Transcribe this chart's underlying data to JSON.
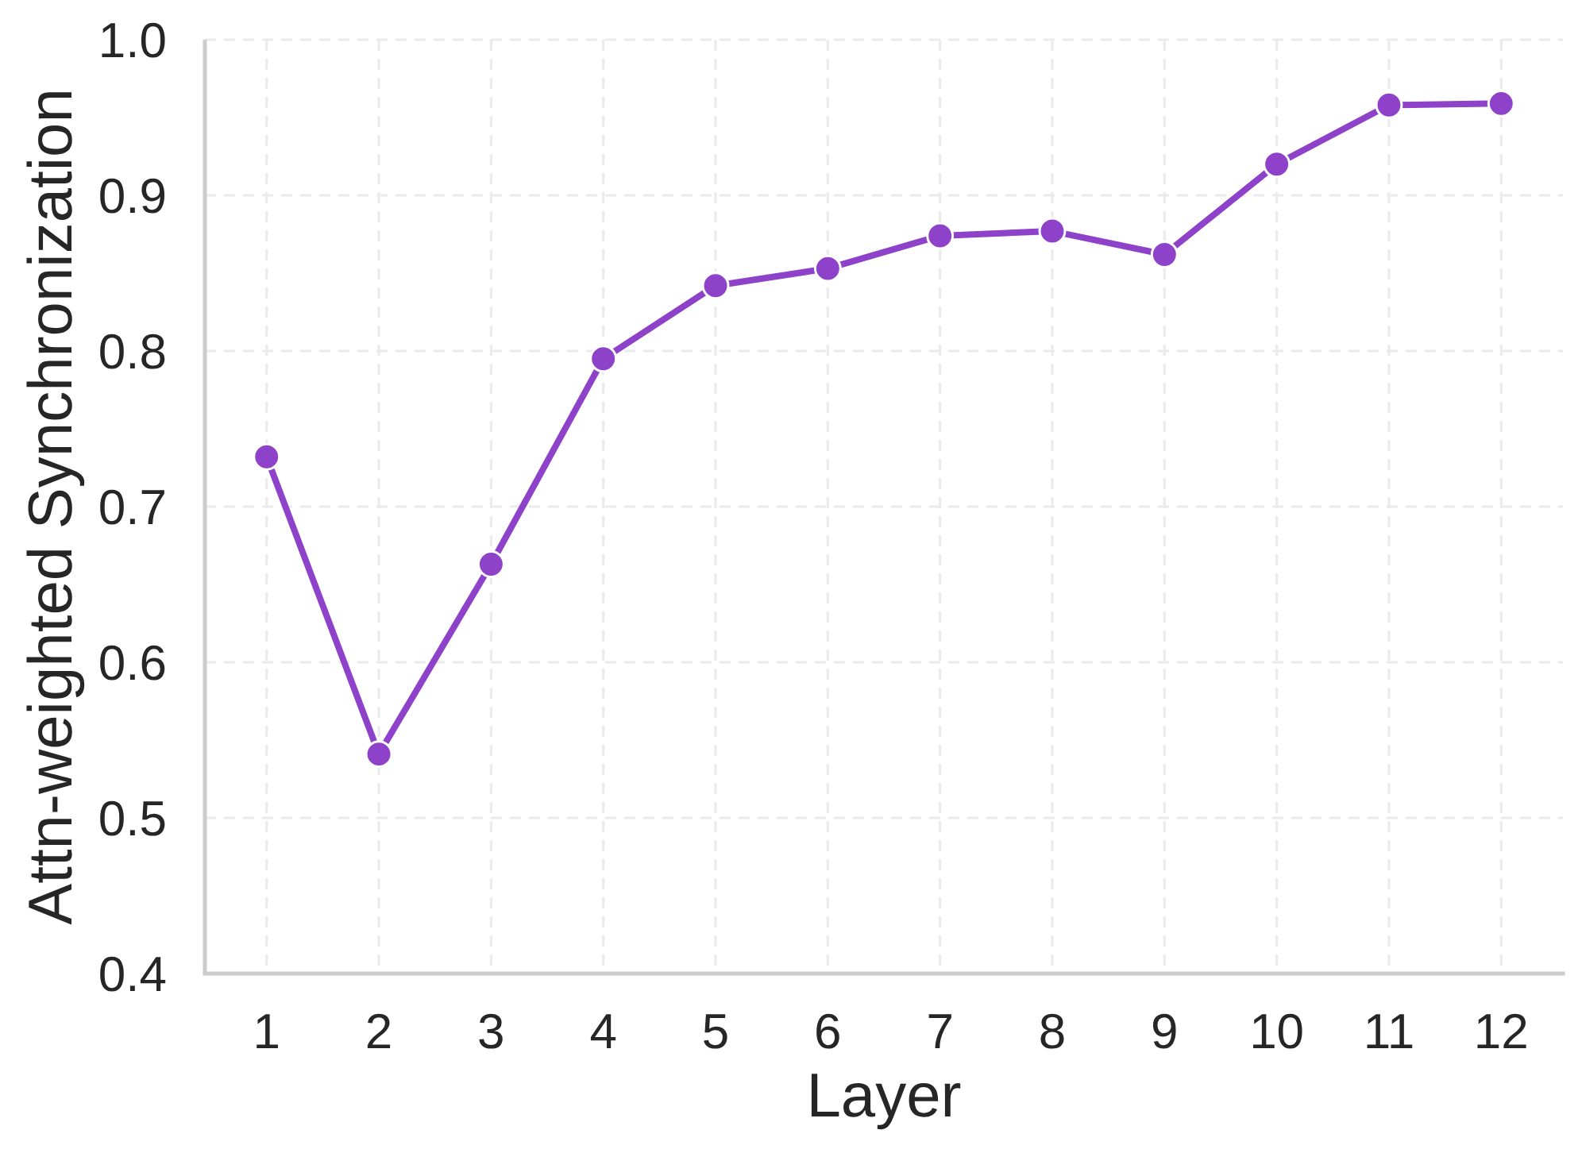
{
  "chart_data": {
    "type": "line",
    "xlabel": "Layer",
    "ylabel": "Attn-weighted Synchronization",
    "x": [
      1,
      2,
      3,
      4,
      5,
      6,
      7,
      8,
      9,
      10,
      11,
      12
    ],
    "series": [
      {
        "color": "#8e41c9",
        "values": [
          0.732,
          0.541,
          0.663,
          0.795,
          0.842,
          0.853,
          0.874,
          0.877,
          0.862,
          0.92,
          0.958,
          0.959
        ]
      }
    ],
    "xlim": [
      0.45,
      12.55
    ],
    "xticks": [
      1,
      2,
      3,
      4,
      5,
      6,
      7,
      8,
      9,
      10,
      11,
      12
    ],
    "ylim": [
      0.4,
      1.0
    ],
    "yticks": [
      {
        "value": 0.4,
        "label": "0.4"
      },
      {
        "value": 0.5,
        "label": "0.5"
      },
      {
        "value": 0.6,
        "label": "0.6"
      },
      {
        "value": 0.7,
        "label": "0.7"
      },
      {
        "value": 0.8,
        "label": "0.8"
      },
      {
        "value": 0.9,
        "label": "0.9"
      },
      {
        "value": 1.0,
        "label": "1.0"
      }
    ],
    "grid": true,
    "marker": "circle",
    "line_style": "solid"
  }
}
